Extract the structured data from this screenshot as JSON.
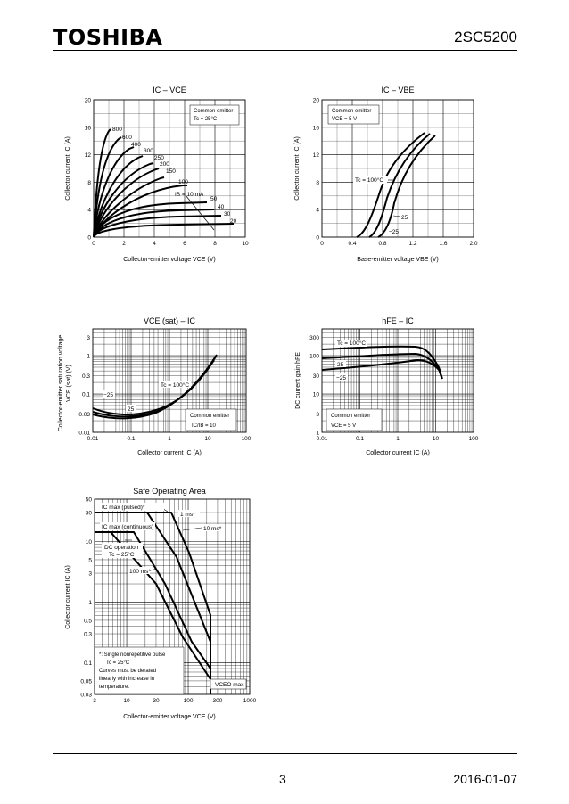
{
  "header": {
    "brand": "TOSHIBA",
    "part_number": "2SC5200"
  },
  "footer": {
    "page": "3",
    "date": "2016-01-07"
  },
  "charts": {
    "ic_vce": {
      "title": "IC – VCE",
      "xlabel": "Collector-emitter voltage   VCE   (V)",
      "ylabel": "Collector current   IC   (A)",
      "xticks": [
        "0",
        "2",
        "4",
        "6",
        "8",
        "10"
      ],
      "yticks": [
        "0",
        "4",
        "8",
        "12",
        "16",
        "20"
      ],
      "note1": "Common emitter",
      "note2": "Tc = 25°C",
      "curve_labels": [
        "800",
        "600",
        "400",
        "300",
        "250",
        "200",
        "150",
        "100",
        "IB = 10 mA",
        "50",
        "40",
        "30",
        "20"
      ]
    },
    "ic_vbe": {
      "title": "IC – VBE",
      "xlabel": "Base-emitter voltage   VBE   (V)",
      "ylabel": "Collector current   IC   (A)",
      "xticks": [
        "0",
        "0.4",
        "0.8",
        "1.2",
        "1.6",
        "2.0"
      ],
      "yticks": [
        "0",
        "4",
        "8",
        "12",
        "16",
        "20"
      ],
      "note1": "Common emitter",
      "note2": "VCE = 5 V",
      "curve_labels": [
        "Tc = 100°C",
        "25",
        "−25"
      ]
    },
    "vcesat_ic": {
      "title": "VCE (sat) – IC",
      "xlabel": "Collector current   IC   (A)",
      "ylabel1": "Collector-emitter saturation voltage",
      "ylabel2": "VCE (sat)   (V)",
      "xticks": [
        "0.01",
        "0.1",
        "1",
        "10",
        "100"
      ],
      "yticks": [
        "0.01",
        "0.03",
        "0.1",
        "0.3",
        "1",
        "3"
      ],
      "note1": "Common emitter",
      "note2": "IC/IB = 10",
      "curve_labels": [
        "Tc = 100°C",
        "−25",
        "25"
      ]
    },
    "hfe_ic": {
      "title": "hFE – IC",
      "xlabel": "Collector current   IC   (A)",
      "ylabel": "DC current gain   hFE",
      "xticks": [
        "0.01",
        "0.1",
        "1",
        "10",
        "100"
      ],
      "yticks": [
        "1",
        "3",
        "10",
        "30",
        "100",
        "300"
      ],
      "note1": "Common emitter",
      "note2": "VCE = 5 V",
      "curve_labels": [
        "Tc = 100°C",
        "25",
        "−25"
      ]
    },
    "soa": {
      "title": "Safe Operating Area",
      "xlabel": "Collector-emitter voltage   VCE   (V)",
      "ylabel": "Collector current   IC   (A)",
      "xticks": [
        "3",
        "10",
        "30",
        "100",
        "300",
        "1000"
      ],
      "yticks": [
        "0.03",
        "0.05",
        "0.1",
        "0.3",
        "0.5",
        "1",
        "3",
        "5",
        "10",
        "30",
        "50"
      ],
      "labels": [
        "IC max (pulsed)*",
        "1 ms*",
        "10 ms*",
        "IC max (continuous)",
        "DC operation",
        "Tc = 25°C",
        "100 ms*",
        "VCEO max"
      ],
      "footnote": [
        "*:   Single nonrepetitive pulse",
        "Tc = 25°C",
        "Curves must be derated",
        "linearly with increase in",
        "temperature."
      ]
    }
  }
}
